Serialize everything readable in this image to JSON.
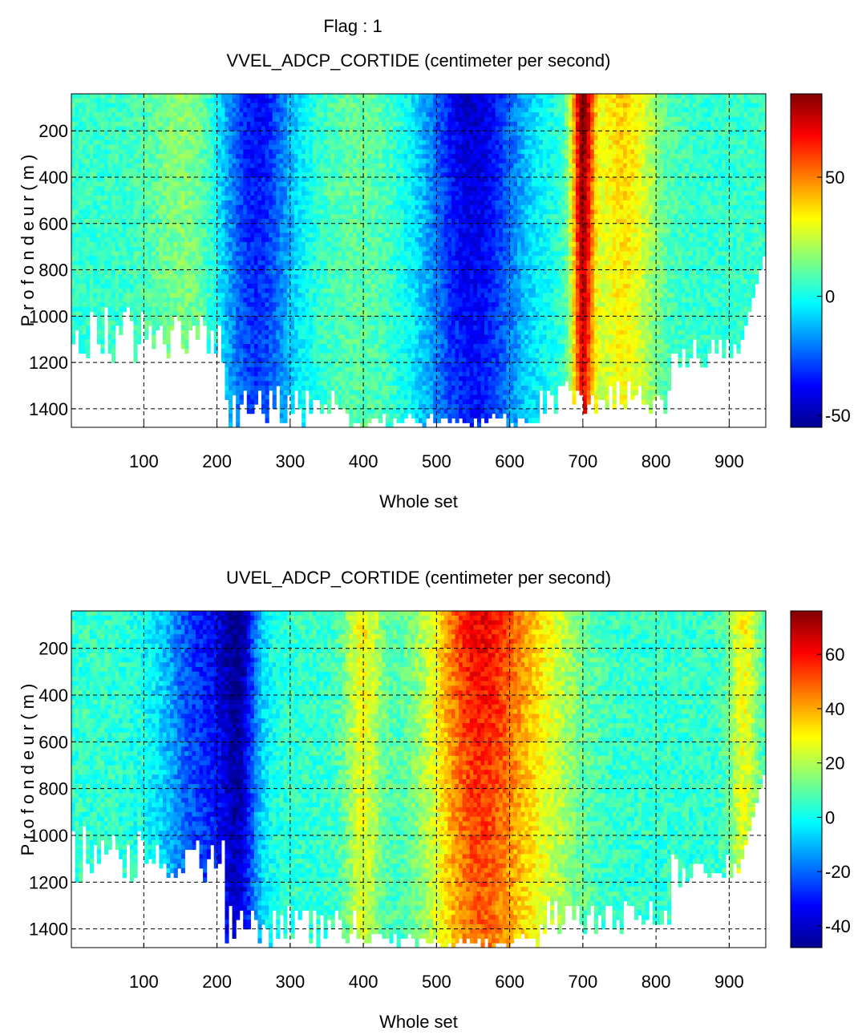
{
  "figure": {
    "flag_label": "Flag : 1"
  },
  "chart_data": [
    {
      "type": "heatmap",
      "title": "VVEL_ADCP_CORTIDE (centimeter per second)",
      "xlabel": "Whole set",
      "ylabel": "P r o f o n d e u r  ( m )",
      "x_ticks": [
        "100",
        "200",
        "300",
        "400",
        "500",
        "600",
        "700",
        "800",
        "900"
      ],
      "y_ticks": [
        "200",
        "400",
        "600",
        "800",
        "1000",
        "1200",
        "1400"
      ],
      "xlim": [
        1,
        950
      ],
      "ylim": [
        1480,
        40
      ],
      "grid": true,
      "colormap": "jet",
      "colorbar": {
        "range": [
          -55,
          85
        ],
        "ticks": [
          "50",
          "0",
          "-50"
        ]
      },
      "features": [
        {
          "x_center": 250,
          "x_width": 55,
          "value": -40
        },
        {
          "x_center": 550,
          "x_width": 70,
          "value": -45
        },
        {
          "x_center": 170,
          "x_width": 60,
          "value": 20
        },
        {
          "x_center": 400,
          "x_width": 60,
          "value": 12
        },
        {
          "x_center": 755,
          "x_width": 45,
          "value": 40
        },
        {
          "x_center": 700,
          "x_width": 15,
          "value": 80
        }
      ]
    },
    {
      "type": "heatmap",
      "title": "UVEL_ADCP_CORTIDE (centimeter per second)",
      "xlabel": "Whole set",
      "ylabel": "P r o f o n d e u r  ( m )",
      "x_ticks": [
        "100",
        "200",
        "300",
        "400",
        "500",
        "600",
        "700",
        "800",
        "900"
      ],
      "y_ticks": [
        "200",
        "400",
        "600",
        "800",
        "1000",
        "1200",
        "1400"
      ],
      "xlim": [
        1,
        950
      ],
      "ylim": [
        1480,
        40
      ],
      "grid": true,
      "colormap": "jet",
      "colorbar": {
        "range": [
          -48,
          76
        ],
        "ticks": [
          "60",
          "40",
          "20",
          "0",
          "-20",
          "-40"
        ]
      },
      "features": [
        {
          "x_center": 185,
          "x_width": 60,
          "value": -30
        },
        {
          "x_center": 230,
          "x_width": 25,
          "value": -28
        },
        {
          "x_center": 400,
          "x_width": 25,
          "value": 30
        },
        {
          "x_center": 555,
          "x_width": 65,
          "value": 60
        },
        {
          "x_center": 640,
          "x_width": 60,
          "value": 25
        },
        {
          "x_center": 920,
          "x_width": 20,
          "value": 30
        }
      ]
    }
  ]
}
